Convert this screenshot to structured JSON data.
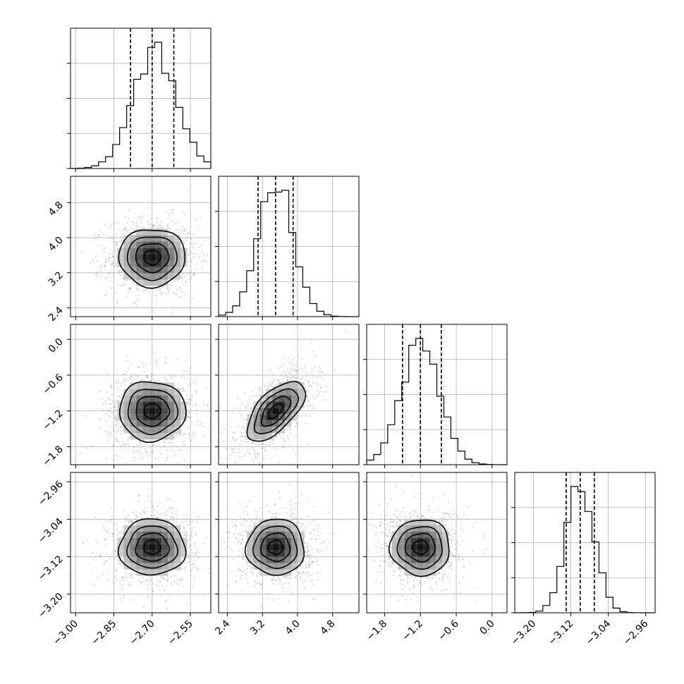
{
  "chart_data": {
    "type": "corner",
    "parameters": [
      {
        "range": [
          -3.02,
          -2.47
        ],
        "ticks": [
          -3.0,
          -2.85,
          -2.7,
          -2.55
        ],
        "tick_labels": [
          "−3.00",
          "−2.85",
          "−2.70",
          "−2.55"
        ],
        "quantiles": [
          -2.785,
          -2.7,
          -2.615
        ],
        "hist_peak": -2.69
      },
      {
        "range": [
          2.2,
          5.4
        ],
        "ticks": [
          2.4,
          3.2,
          4.0,
          4.8
        ],
        "tick_labels": [
          "2.4",
          "3.2",
          "4.0",
          "4.8"
        ],
        "quantiles": [
          3.1,
          3.5,
          3.9
        ],
        "hist_peak": 3.5
      },
      {
        "range": [
          -2.1,
          0.25
        ],
        "ticks": [
          -1.8,
          -1.2,
          -0.6,
          0.0
        ],
        "tick_labels": [
          "−1.8",
          "−1.2",
          "−0.6",
          "0.0"
        ],
        "quantiles": [
          -1.5,
          -1.2,
          -0.85
        ],
        "hist_peak": -1.2
      },
      {
        "range": [
          -3.24,
          -2.94
        ],
        "ticks": [
          -3.2,
          -3.12,
          -3.04,
          -2.96
        ],
        "tick_labels": [
          "−3.20",
          "−3.12",
          "−3.04",
          "−2.96"
        ],
        "quantiles": [
          -3.13,
          -3.1,
          -3.07
        ],
        "hist_peak": -3.1
      }
    ],
    "panels_2d": [
      {
        "x": 0,
        "y": 1,
        "center": [
          -2.7,
          3.55
        ],
        "sigma": [
          0.065,
          0.33
        ],
        "rho": 0.0
      },
      {
        "x": 0,
        "y": 2,
        "center": [
          -2.7,
          -1.2
        ],
        "sigma": [
          0.065,
          0.25
        ],
        "rho": 0.0
      },
      {
        "x": 1,
        "y": 2,
        "center": [
          3.5,
          -1.2
        ],
        "sigma": [
          0.33,
          0.25
        ],
        "rho": 0.62
      },
      {
        "x": 0,
        "y": 3,
        "center": [
          -2.7,
          -3.1
        ],
        "sigma": [
          0.065,
          0.03
        ],
        "rho": 0.0
      },
      {
        "x": 1,
        "y": 3,
        "center": [
          3.5,
          -3.1
        ],
        "sigma": [
          0.33,
          0.03
        ],
        "rho": 0.0
      },
      {
        "x": 2,
        "y": 3,
        "center": [
          -1.2,
          -3.1
        ],
        "sigma": [
          0.25,
          0.03
        ],
        "rho": 0.0
      }
    ],
    "grid": true,
    "contour_levels_sigma": [
      0.5,
      1.0,
      1.5,
      2.0
    ]
  }
}
